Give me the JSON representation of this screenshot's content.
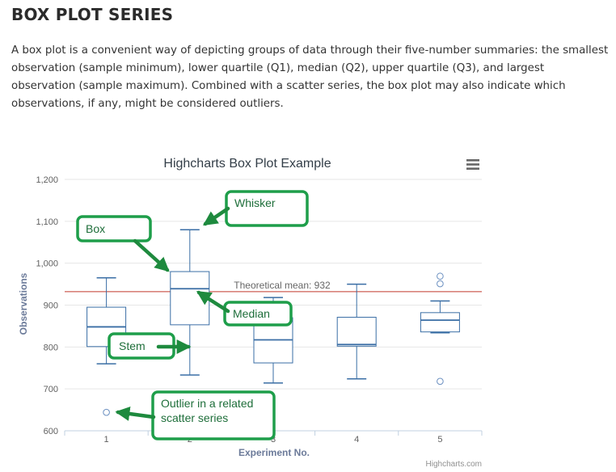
{
  "page": {
    "heading": "BOX PLOT SERIES",
    "intro": "A box plot is a convenient way of depicting groups of data through their five-number summaries: the smallest observation (sample minimum), lower quartile (Q1), median (Q2), upper quartile (Q3), and largest observation (sample maximum). Combined with a scatter series, the box plot may also indicate which observations, if any, might be considered outliers."
  },
  "chart_data": {
    "type": "boxplot",
    "title": "Highcharts Box Plot Example",
    "xlabel": "Experiment No.",
    "ylabel": "Observations",
    "categories": [
      "1",
      "2",
      "3",
      "4",
      "5"
    ],
    "ylim": [
      600,
      1200
    ],
    "yticks": [
      600,
      700,
      800,
      900,
      "1,000",
      "1,100",
      "1,200"
    ],
    "grid": true,
    "boxes": [
      {
        "low": 760,
        "q1": 801,
        "median": 848,
        "q3": 895,
        "high": 965
      },
      {
        "low": 733,
        "q1": 853,
        "median": 939,
        "q3": 980,
        "high": 1080
      },
      {
        "low": 714,
        "q1": 762,
        "median": 817,
        "q3": 870,
        "high": 918
      },
      {
        "low": 724,
        "q1": 802,
        "median": 806,
        "q3": 871,
        "high": 950
      },
      {
        "low": 834,
        "q1": 836,
        "median": 864,
        "q3": 882,
        "high": 910
      }
    ],
    "outliers": [
      {
        "x": "1",
        "y": 644
      },
      {
        "x": "5",
        "y": 718
      },
      {
        "x": "5",
        "y": 951
      },
      {
        "x": "5",
        "y": 969
      }
    ],
    "plot_line": {
      "value": 932,
      "label": "Theoretical mean: 932",
      "color": "#c0392b"
    },
    "colors": {
      "series": "#3a6ea5",
      "callout_border": "#1e9e4a",
      "arrow": "#1e8a3e"
    },
    "callouts": [
      "Whisker",
      "Box",
      "Median",
      "Stem",
      "Outlier in a related scatter series"
    ],
    "menu_icon": "hamburger-menu-icon",
    "credits": "Highcharts.com"
  }
}
